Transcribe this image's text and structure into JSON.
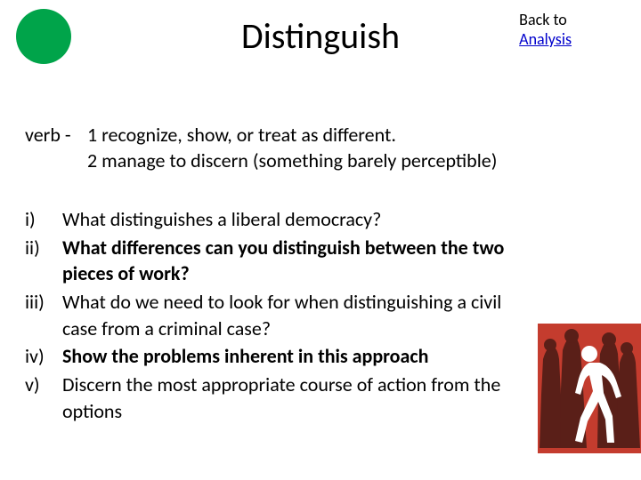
{
  "accent_color": "#00a44a",
  "title": "Distinguish",
  "back": {
    "line1": "Back to",
    "line2": "Analysis",
    "link_color": "#0000cc"
  },
  "definition": {
    "label": "verb -",
    "d1": "1 recognize, show, or treat as different.",
    "d2": "2 manage to discern (something barely perceptible)"
  },
  "questions": [
    {
      "num": "i)",
      "text": "What distinguishes a liberal democracy?",
      "bold": false
    },
    {
      "num": "ii)",
      "text": "What differences can you distinguish between the two pieces of work?",
      "bold": true
    },
    {
      "num": "iii)",
      "text": "What do we need to look for when distinguishing a civil case from a criminal case?",
      "bold": false
    },
    {
      "num": "iv)",
      "text": "Show the problems inherent in this approach",
      "bold": true
    },
    {
      "num": "v)",
      "text": "Discern the most appropriate course of action from the options",
      "bold": false
    }
  ],
  "illustration": {
    "background": "#c43c2e",
    "crowd_color": "#5a1f18",
    "figure_color": "#ffffff"
  },
  "typography": {
    "title_size": 40,
    "body_size": 22,
    "backlink_size": 18
  }
}
